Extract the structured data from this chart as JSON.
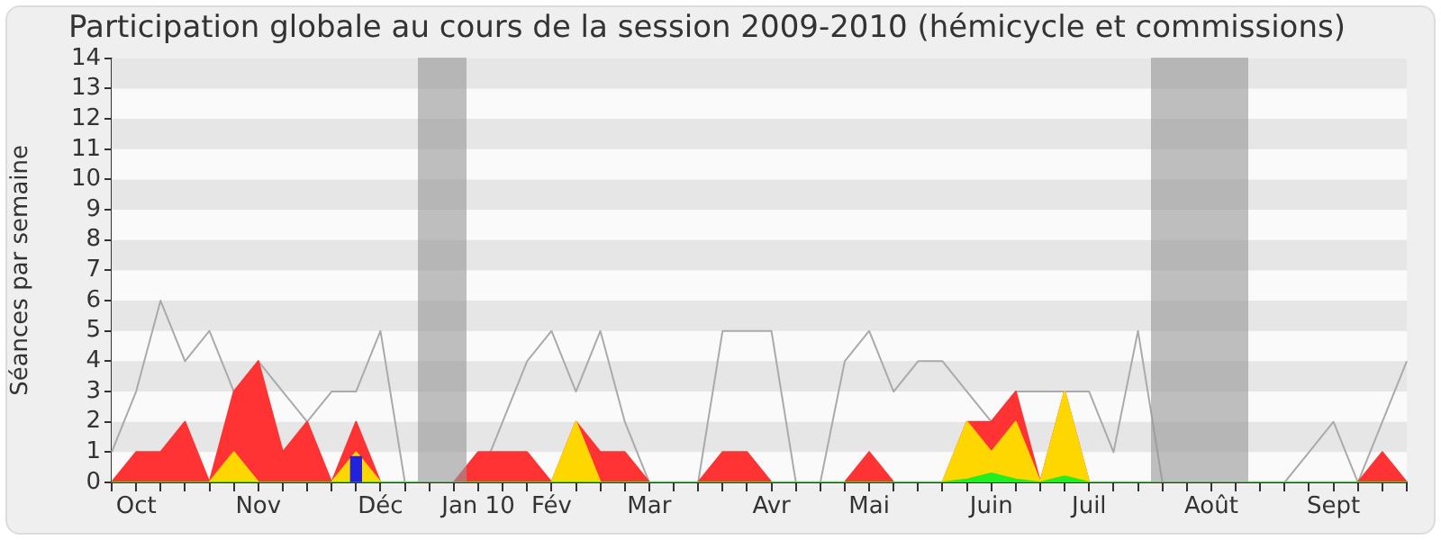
{
  "chart_data": {
    "type": "area",
    "title": "Participation globale au cours de la session 2009-2010 (hémicycle et commissions)",
    "ylabel": "Séances par semaine",
    "categories": [
      null,
      "Oct",
      null,
      null,
      null,
      null,
      "Nov",
      null,
      null,
      null,
      null,
      "Déc",
      null,
      null,
      null,
      "Jan 10",
      null,
      null,
      "Fév",
      null,
      null,
      null,
      "Mar",
      null,
      null,
      null,
      null,
      "Avr",
      null,
      null,
      null,
      "Mai",
      null,
      null,
      null,
      null,
      "Juin",
      null,
      null,
      null,
      "Juil",
      null,
      null,
      null,
      null,
      "Août",
      null,
      null,
      null,
      null,
      "Sept",
      null,
      null,
      null
    ],
    "series": [
      {
        "type": "line",
        "color": "#aaaaaa",
        "values": [
          1,
          3,
          6,
          4,
          5,
          3,
          4,
          3,
          2,
          3,
          3,
          5,
          0,
          0,
          0,
          0,
          2,
          4,
          5,
          3,
          5,
          2,
          0,
          0,
          0,
          5,
          5,
          5,
          0,
          0,
          4,
          5,
          3,
          4,
          4,
          3,
          2,
          3,
          3,
          3,
          3,
          1,
          5,
          0,
          0,
          0,
          0,
          0,
          0,
          1,
          2,
          0,
          2,
          4
        ]
      },
      {
        "color": "#ff3333",
        "values": [
          0,
          1,
          1,
          2,
          0,
          3,
          4,
          1,
          2,
          0,
          2,
          0,
          0,
          0,
          0,
          1,
          1,
          1,
          0,
          2,
          1,
          1,
          0,
          0,
          0,
          1,
          1,
          0,
          0,
          0,
          0,
          1,
          0,
          0,
          0,
          2,
          2,
          3,
          0,
          3,
          0,
          0,
          0,
          0,
          0,
          0,
          0,
          0,
          0,
          0,
          0,
          0,
          1,
          0
        ]
      },
      {
        "color": "#ffd700",
        "values": [
          0,
          0,
          0,
          0,
          0,
          1,
          0,
          0,
          0,
          0,
          1,
          0,
          0,
          0,
          0,
          0,
          0,
          0,
          0,
          2,
          0,
          0,
          0,
          0,
          0,
          0,
          0,
          0,
          0,
          0,
          0,
          0,
          0,
          0,
          0,
          2,
          1,
          2,
          0,
          3,
          0,
          0,
          0,
          0,
          0,
          0,
          0,
          0,
          0,
          0,
          0,
          0,
          0,
          0
        ]
      },
      {
        "color": "#22ee22",
        "values": [
          0,
          0,
          0,
          0,
          0,
          0,
          0,
          0,
          0,
          0,
          0,
          0,
          0,
          0,
          0,
          0,
          0,
          0,
          0,
          0,
          0,
          0,
          0,
          0,
          0,
          0,
          0,
          0,
          0,
          0,
          0,
          0,
          0,
          0,
          0,
          0.1,
          0.3,
          0.1,
          0,
          0.2,
          0,
          0,
          0,
          0,
          0,
          0,
          0,
          0,
          0,
          0,
          0,
          0,
          0,
          0
        ]
      },
      {
        "type": "bar",
        "color": "#2222dd",
        "values": [
          null,
          null,
          null,
          null,
          null,
          null,
          null,
          null,
          null,
          null,
          0.85,
          null,
          null,
          null,
          null,
          null,
          null,
          null,
          null,
          null,
          null,
          null,
          null,
          null,
          null,
          null,
          null,
          null,
          null,
          null,
          null,
          null,
          null,
          null,
          null,
          null,
          null,
          null,
          null,
          null,
          null,
          null,
          null,
          null,
          null,
          null,
          null,
          null,
          null,
          null,
          null,
          null,
          null,
          null
        ]
      }
    ],
    "ylim": [
      0,
      14
    ],
    "yticks": [
      0,
      1,
      2,
      3,
      4,
      5,
      6,
      7,
      8,
      9,
      10,
      11,
      12,
      13,
      14
    ],
    "legend": false,
    "marker": "none"
  }
}
